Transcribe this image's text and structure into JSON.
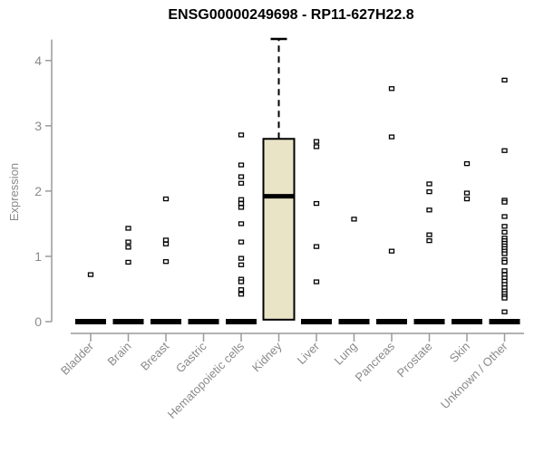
{
  "window": {
    "title": "ENSG00000249698 - RP11-627H22.8"
  },
  "colors": {
    "box_fill": "#EAE4C7",
    "axis_line": "#9A9A9A",
    "axis_text": "#8A8A8A",
    "plot_black": "#000000",
    "background": "#FFFFFF"
  },
  "chart_data": {
    "type": "boxplot",
    "title": "ENSG00000249698 - RP11-627H22.8",
    "xlabel": "",
    "ylabel": "Expression",
    "ylim": [
      0,
      4.35
    ],
    "yticks": [
      0,
      1,
      2,
      3,
      4
    ],
    "grid": false,
    "legend": "none",
    "categories": [
      "Bladder",
      "Brain",
      "Breast",
      "Gastric",
      "Hematopoietic cells",
      "Kidney",
      "Liver",
      "Lung",
      "Pancreas",
      "Prostate",
      "Skin",
      "Unknown / Other"
    ],
    "series": [
      {
        "name": "Bladder",
        "zero_bar": true,
        "points": [
          0.72
        ]
      },
      {
        "name": "Brain",
        "zero_bar": true,
        "points": [
          1.43,
          1.22,
          1.14,
          0.91
        ]
      },
      {
        "name": "Breast",
        "zero_bar": true,
        "points": [
          1.88,
          1.25,
          1.19,
          0.92
        ]
      },
      {
        "name": "Gastric",
        "zero_bar": true,
        "points": []
      },
      {
        "name": "Hematopoietic cells",
        "zero_bar": true,
        "points": [
          2.86,
          2.4,
          2.22,
          2.12,
          1.87,
          1.81,
          1.75,
          1.5,
          1.22,
          0.97,
          0.87,
          0.65,
          0.61,
          0.49,
          0.42
        ]
      },
      {
        "name": "Kidney",
        "zero_bar": false,
        "points": [],
        "box": {
          "whisker_high": 4.33,
          "q3": 2.8,
          "median": 1.92,
          "q1": 0.03,
          "whisker_low": 0.03
        }
      },
      {
        "name": "Liver",
        "zero_bar": true,
        "points": [
          2.76,
          2.68,
          1.81,
          1.15,
          0.61
        ]
      },
      {
        "name": "Lung",
        "zero_bar": true,
        "points": [
          1.57
        ]
      },
      {
        "name": "Pancreas",
        "zero_bar": true,
        "points": [
          3.57,
          2.83,
          1.08
        ]
      },
      {
        "name": "Prostate",
        "zero_bar": true,
        "points": [
          2.11,
          1.99,
          1.71,
          1.33,
          1.24
        ]
      },
      {
        "name": "Skin",
        "zero_bar": true,
        "points": [
          2.42,
          1.97,
          1.88
        ]
      },
      {
        "name": "Unknown / Other",
        "zero_bar": true,
        "points": [
          3.7,
          2.62,
          1.86,
          1.83,
          1.61,
          1.46,
          1.37,
          1.28,
          1.24,
          1.2,
          1.16,
          1.12,
          1.08,
          1.04,
          0.95,
          0.91,
          0.78,
          0.72,
          0.67,
          0.62,
          0.57,
          0.52,
          0.47,
          0.43,
          0.39,
          0.36,
          0.15
        ]
      }
    ]
  }
}
